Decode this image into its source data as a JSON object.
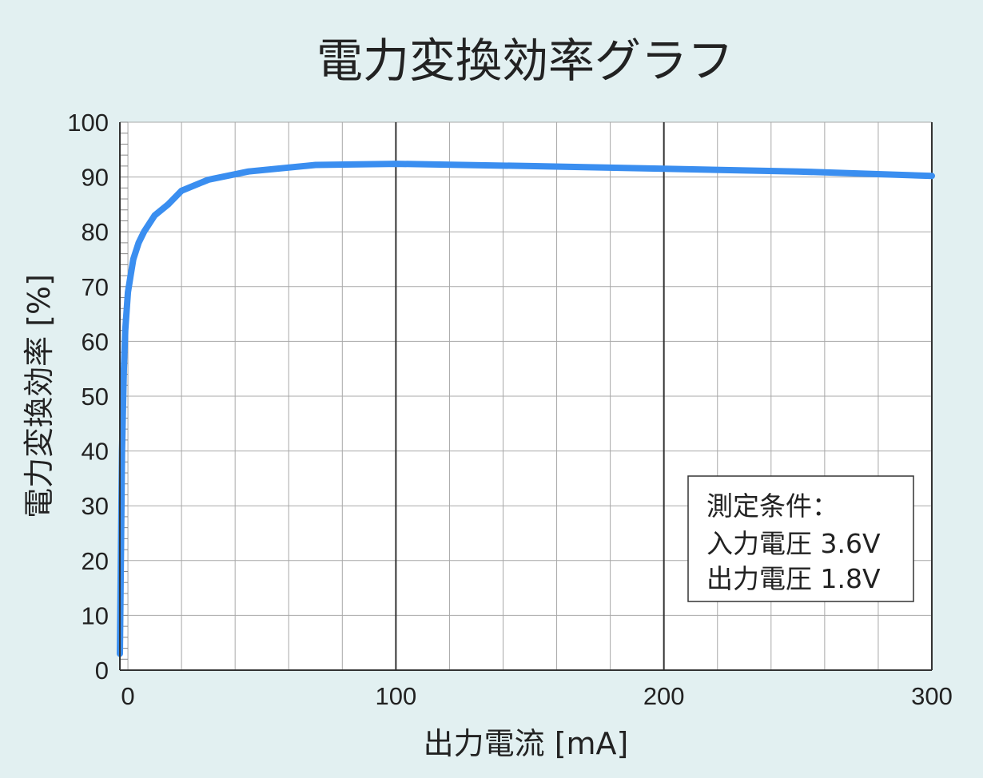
{
  "chart_data": {
    "type": "line",
    "title": "電力変換効率グラフ",
    "xlabel": "出力電流 [mA]",
    "ylabel": "電力変換効率 [%]",
    "xlim": [
      -3,
      300
    ],
    "ylim": [
      0,
      100
    ],
    "x_ticks": [
      0,
      100,
      200,
      300
    ],
    "y_ticks": [
      0,
      10,
      20,
      30,
      40,
      50,
      60,
      70,
      80,
      90,
      100
    ],
    "grid": true,
    "series": [
      {
        "x": [
          -3,
          -2.2,
          -1.5,
          -1,
          0,
          1,
          2,
          4,
          6,
          10,
          15,
          20,
          30,
          45,
          70,
          100,
          150,
          200,
          250,
          300
        ],
        "y": [
          3,
          40,
          55,
          62,
          69,
          72,
          75,
          78,
          80,
          83,
          85,
          87.5,
          89.5,
          91,
          92.2,
          92.4,
          92,
          91.5,
          91,
          90.2
        ]
      }
    ],
    "line_color": "#3a8ef0",
    "annotation": [
      "測定条件：",
      "入力電圧 3.6V",
      "出力電圧 1.8V"
    ]
  }
}
